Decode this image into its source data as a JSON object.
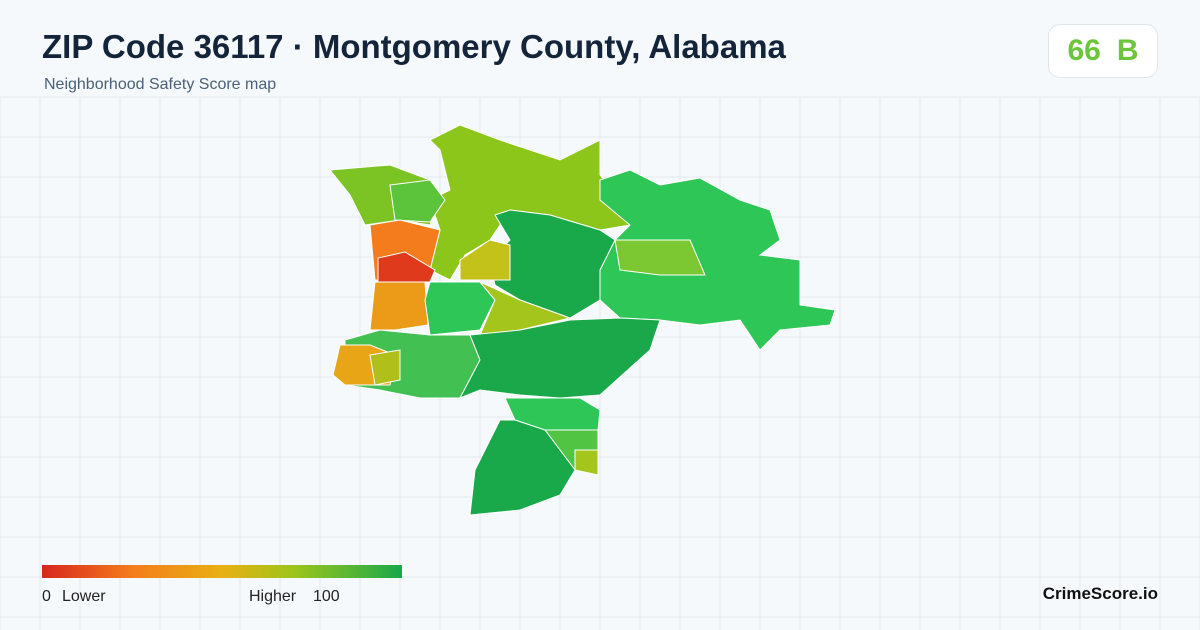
{
  "header": {
    "title": "ZIP Code 36117 · Montgomery County, Alabama",
    "subtitle": "Neighborhood Safety Score map"
  },
  "score": {
    "value": 66,
    "grade": "B"
  },
  "legend": {
    "min": 0,
    "min_label": "Lower",
    "max_label": "Higher",
    "max": 100
  },
  "brand": "CrimeScore.io"
}
